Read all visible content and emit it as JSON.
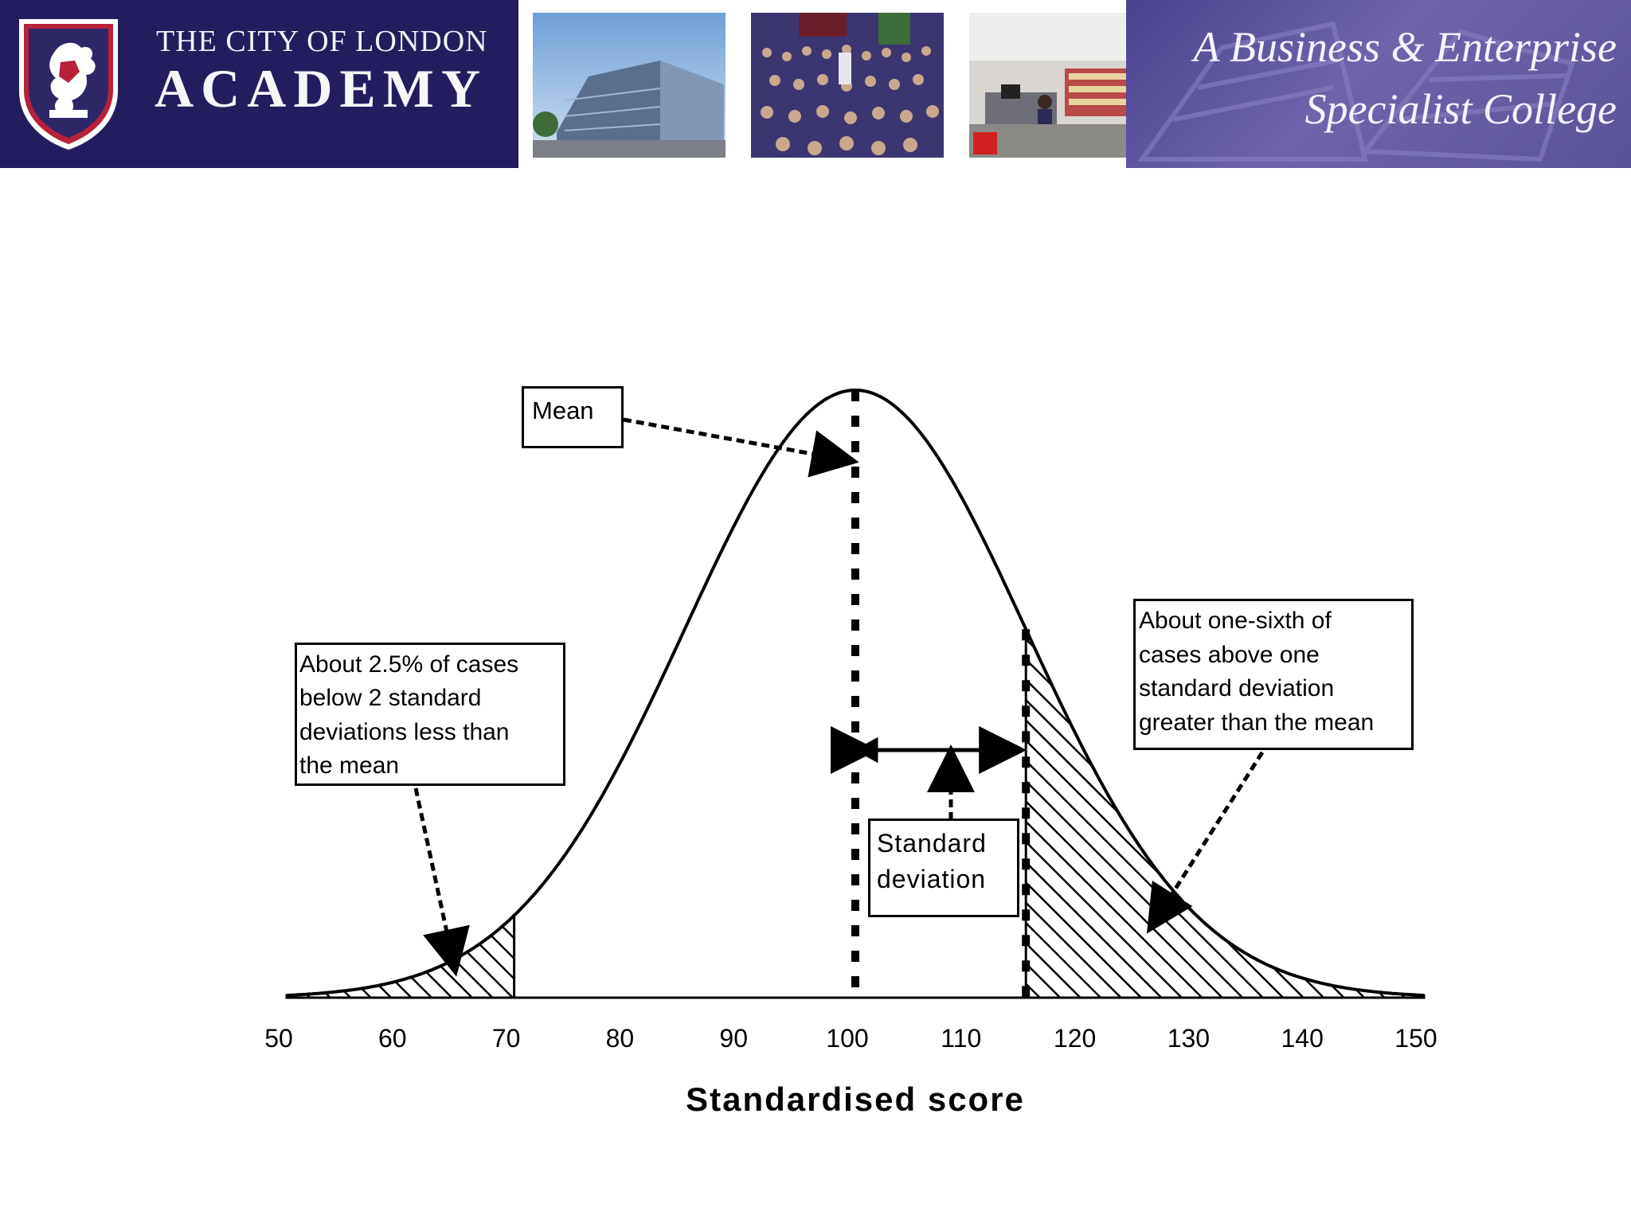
{
  "banner": {
    "school_name_line1": "THE CITY OF LONDON",
    "school_name_line2": "ACADEMY",
    "tagline_line1": "A Business & Enterprise",
    "tagline_line2": "Specialist College",
    "brand_color": "#231c5f",
    "tagline_color": "#5a5299"
  },
  "chart_data": {
    "type": "area",
    "distribution": "normal",
    "mean": 100,
    "sd": 15,
    "xlim": [
      50,
      150
    ],
    "x_ticks": [
      50,
      60,
      70,
      80,
      90,
      100,
      110,
      120,
      130,
      140,
      150
    ],
    "xlabel": "Standardised score",
    "ylabel": "",
    "shaded_regions": [
      {
        "from": 50,
        "to": 70,
        "pattern": "hatched"
      },
      {
        "from": 115,
        "to": 150,
        "pattern": "hatched"
      }
    ],
    "reference_lines": [
      {
        "x": 100,
        "style": "dashed"
      },
      {
        "x": 115,
        "style": "dashed"
      }
    ],
    "annotations": {
      "mean": "Mean",
      "left_tail": [
        "About 2.5% of cases",
        "below 2 standard",
        "deviations less than",
        "the mean"
      ],
      "right_tail": [
        "About one-sixth of",
        "cases above one",
        "standard deviation",
        "greater than the mean"
      ],
      "standard_deviation": [
        "Standard",
        "deviation"
      ]
    }
  }
}
